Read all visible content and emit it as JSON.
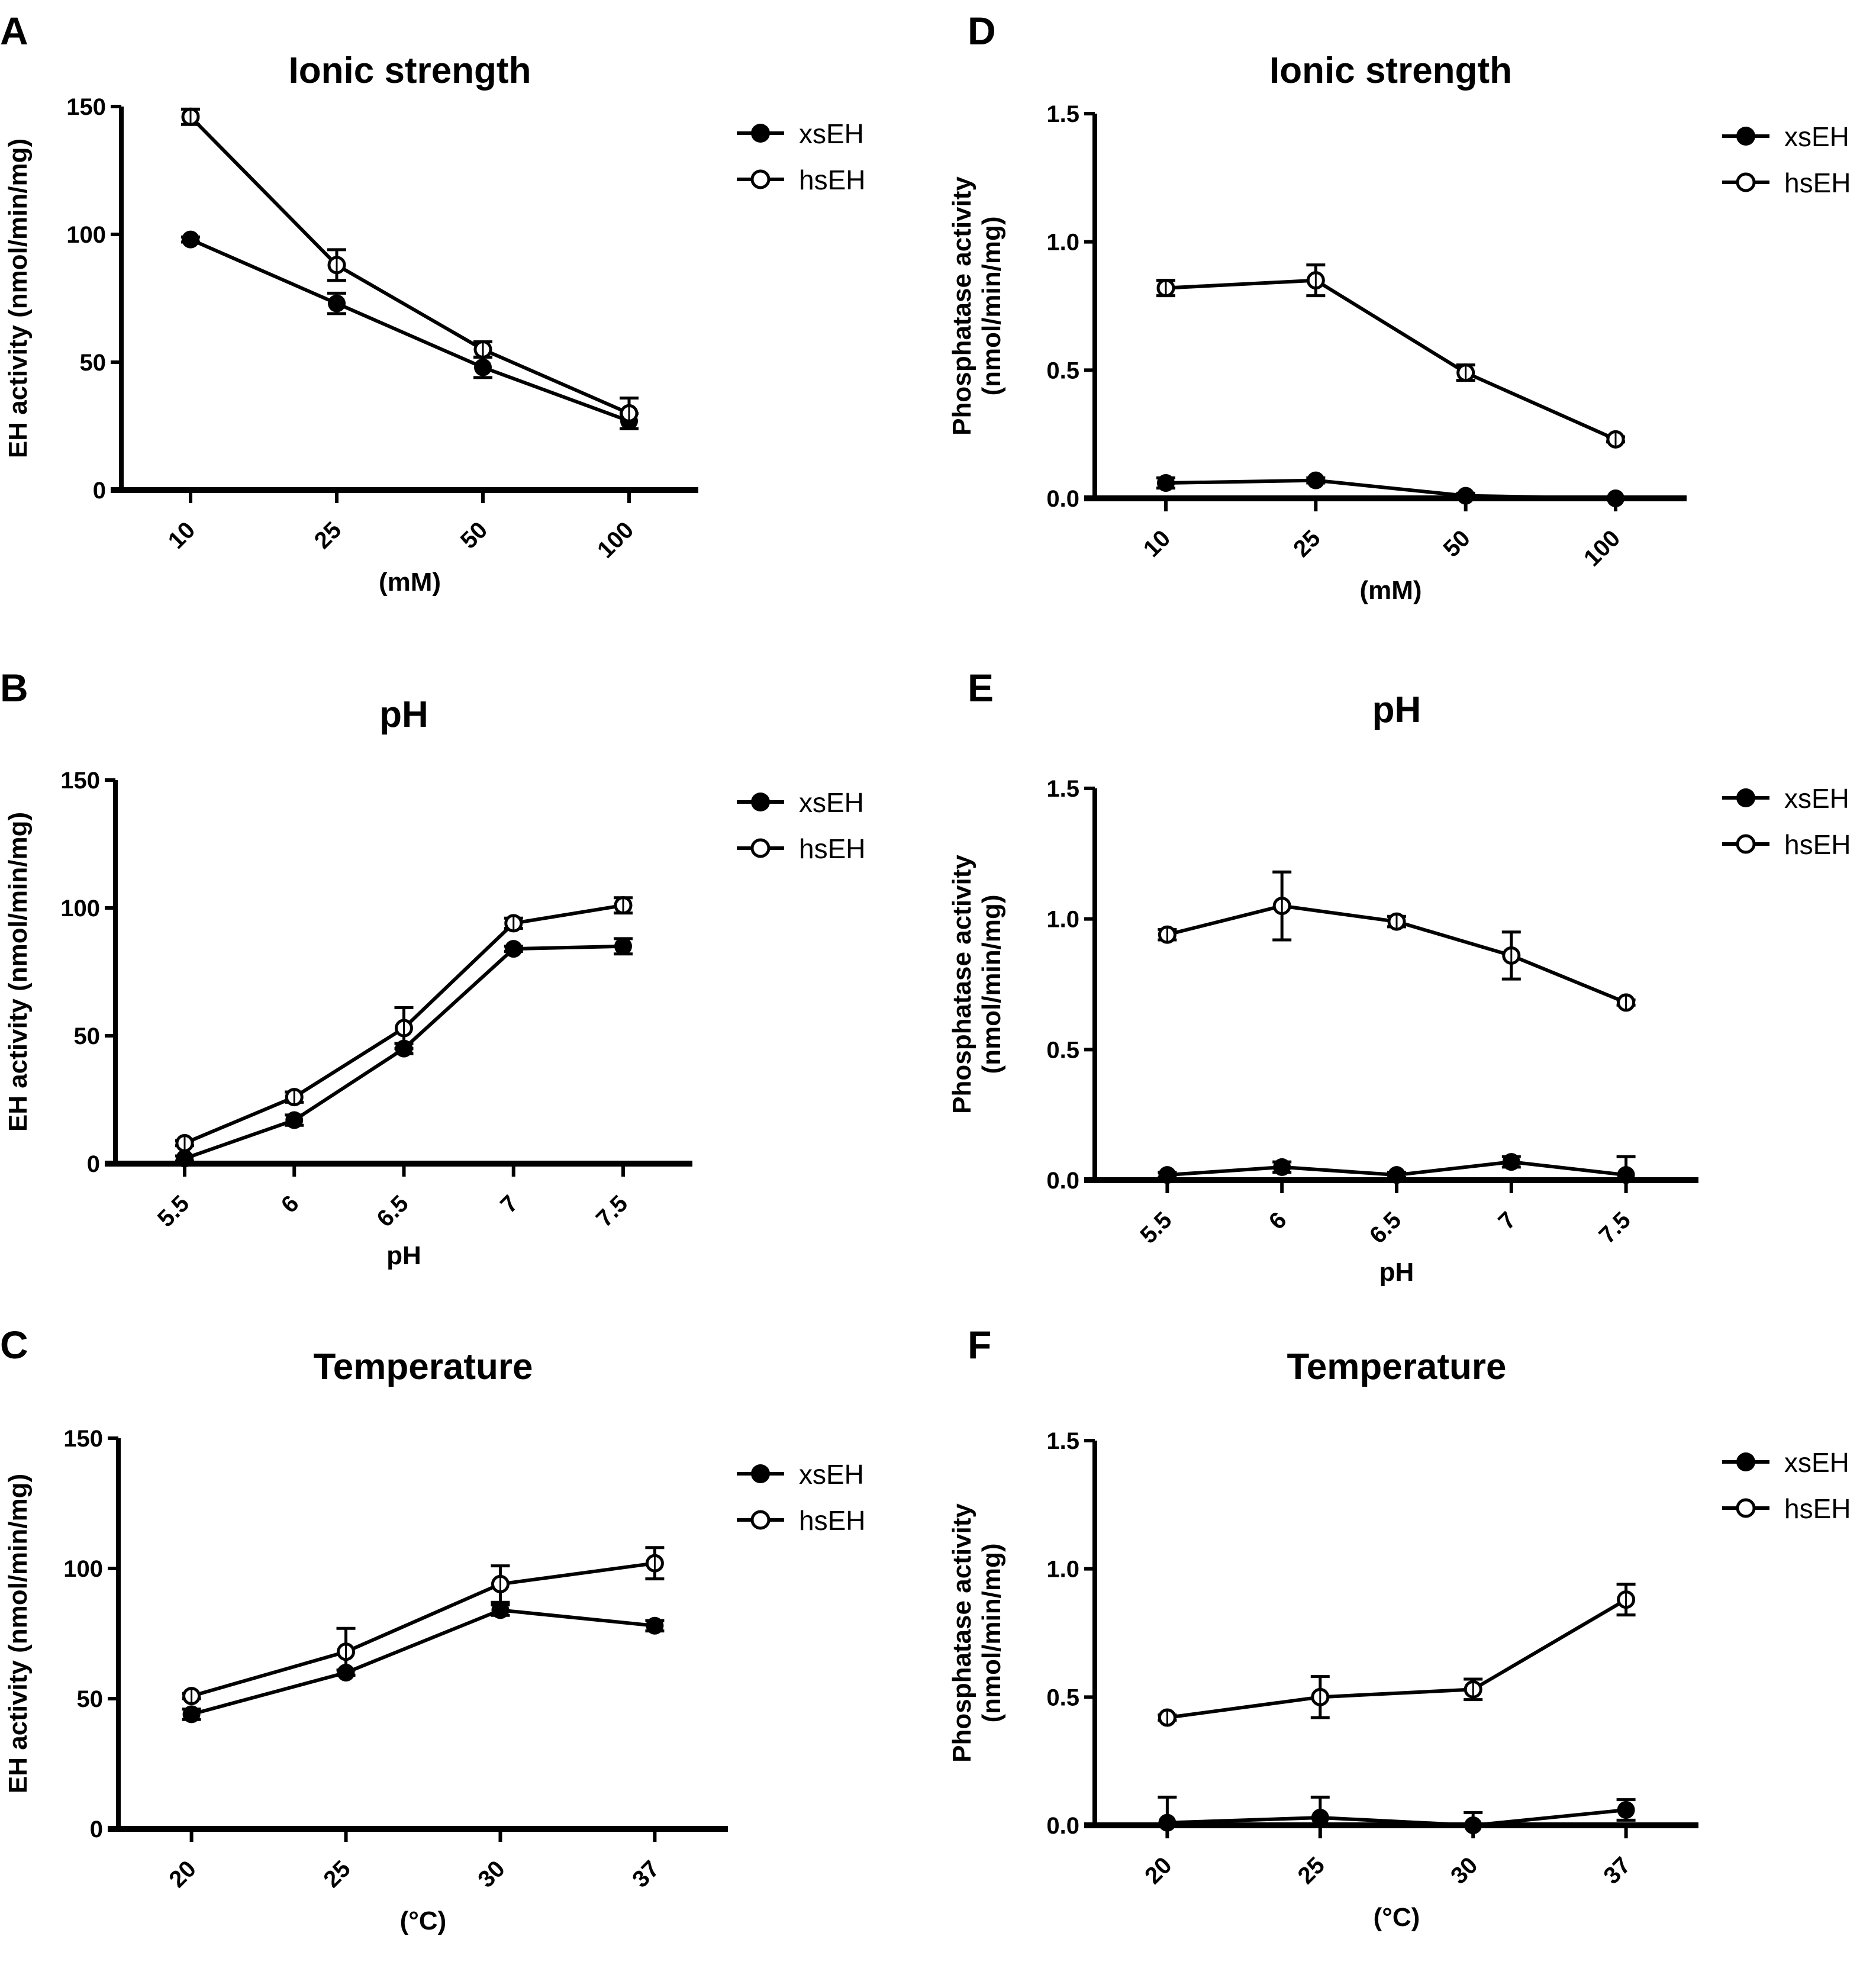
{
  "figure": {
    "panels": [
      "A",
      "B",
      "C",
      "D",
      "E",
      "F"
    ]
  },
  "chart_data": [
    {
      "id": "A",
      "type": "line",
      "title": "Ionic strength",
      "xlabel": "(mM)",
      "ylabel": "EH activity (nmol/min/mg)",
      "categories": [
        "10",
        "25",
        "50",
        "100"
      ],
      "ylim": [
        0,
        150
      ],
      "yticks": [
        "0",
        "50",
        "100",
        "150"
      ],
      "ytick_values": [
        0,
        50,
        100,
        150
      ],
      "x_rotated": true,
      "legend": "top-right",
      "series": [
        {
          "name": "xsEH",
          "marker": "filled-circle",
          "values": [
            98,
            73,
            48,
            27
          ],
          "errors": [
            1,
            4,
            4,
            3
          ]
        },
        {
          "name": "hsEH",
          "marker": "open-circle",
          "values": [
            146,
            88,
            55,
            30
          ],
          "errors": [
            3,
            6,
            3,
            6
          ]
        }
      ]
    },
    {
      "id": "B",
      "type": "line",
      "title": "pH",
      "xlabel": "pH",
      "ylabel": "EH activity (nmol/min/mg)",
      "categories": [
        "5.5",
        "6",
        "6.5",
        "7",
        "7.5"
      ],
      "ylim": [
        0,
        150
      ],
      "yticks": [
        "0",
        "50",
        "100",
        "150"
      ],
      "ytick_values": [
        0,
        50,
        100,
        150
      ],
      "x_rotated": true,
      "legend": "top-right",
      "series": [
        {
          "name": "xsEH",
          "marker": "filled-circle",
          "values": [
            2,
            17,
            45,
            84,
            85
          ],
          "errors": [
            1,
            2,
            2,
            1,
            3
          ]
        },
        {
          "name": "hsEH",
          "marker": "open-circle",
          "values": [
            8,
            26,
            53,
            94,
            101
          ],
          "errors": [
            1,
            2,
            8,
            2,
            3
          ]
        }
      ]
    },
    {
      "id": "C",
      "type": "line",
      "title": "Temperature",
      "xlabel": "(°C)",
      "ylabel": "EH activity (nmol/min/mg)",
      "categories": [
        "20",
        "25",
        "30",
        "37"
      ],
      "ylim": [
        0,
        150
      ],
      "yticks": [
        "0",
        "50",
        "100",
        "150"
      ],
      "ytick_values": [
        0,
        50,
        100,
        150
      ],
      "x_rotated": true,
      "legend": "top-right",
      "series": [
        {
          "name": "xsEH",
          "marker": "filled-circle",
          "values": [
            44,
            60,
            84,
            78
          ],
          "errors": [
            2,
            1,
            2,
            2
          ]
        },
        {
          "name": "hsEH",
          "marker": "open-circle",
          "values": [
            51,
            68,
            94,
            102
          ],
          "errors": [
            1,
            9,
            7,
            6
          ]
        }
      ]
    },
    {
      "id": "D",
      "type": "line",
      "title": "Ionic strength",
      "xlabel": "(mM)",
      "ylabel": "Phosphatase activity (nmol/min/mg)",
      "ylabel_lines": [
        "Phosphatase activity",
        "(nmol/min/mg)"
      ],
      "categories": [
        "10",
        "25",
        "50",
        "100"
      ],
      "ylim": [
        0,
        1.5
      ],
      "yticks": [
        "0.0",
        "0.5",
        "1.0",
        "1.5"
      ],
      "ytick_values": [
        0,
        0.5,
        1.0,
        1.5
      ],
      "x_rotated": true,
      "legend": "top-right",
      "series": [
        {
          "name": "xsEH",
          "marker": "filled-circle",
          "values": [
            0.06,
            0.07,
            0.01,
            0.0
          ],
          "errors": [
            0.02,
            0.01,
            0.01,
            0.0
          ]
        },
        {
          "name": "hsEH",
          "marker": "open-circle",
          "values": [
            0.82,
            0.85,
            0.49,
            0.23
          ],
          "errors": [
            0.03,
            0.06,
            0.03,
            0.01
          ]
        }
      ]
    },
    {
      "id": "E",
      "type": "line",
      "title": "pH",
      "xlabel": "pH",
      "ylabel": "Phosphatase activity (nmol/min/mg)",
      "ylabel_lines": [
        "Phosphatase activity",
        "(nmol/min/mg)"
      ],
      "categories": [
        "5.5",
        "6",
        "6.5",
        "7",
        "7.5"
      ],
      "ylim": [
        0,
        1.5
      ],
      "yticks": [
        "0.0",
        "0.5",
        "1.0",
        "1.5"
      ],
      "ytick_values": [
        0,
        0.5,
        1.0,
        1.5
      ],
      "x_rotated": true,
      "legend": "top-right",
      "series": [
        {
          "name": "xsEH",
          "marker": "filled-circle",
          "values": [
            0.02,
            0.05,
            0.02,
            0.07,
            0.02
          ],
          "errors": [
            0.01,
            0.02,
            0.01,
            0.02,
            0.07
          ]
        },
        {
          "name": "hsEH",
          "marker": "open-circle",
          "values": [
            0.94,
            1.05,
            0.99,
            0.86,
            0.68
          ],
          "errors": [
            0.02,
            0.13,
            0.02,
            0.09,
            0.01
          ]
        }
      ]
    },
    {
      "id": "F",
      "type": "line",
      "title": "Temperature",
      "xlabel": "(°C)",
      "ylabel": "Phosphatase activity (nmol/min/mg)",
      "ylabel_lines": [
        "Phosphatase activity",
        "(nmol/min/mg)"
      ],
      "categories": [
        "20",
        "25",
        "30",
        "37"
      ],
      "ylim": [
        0,
        1.5
      ],
      "yticks": [
        "0.0",
        "0.5",
        "1.0",
        "1.5"
      ],
      "ytick_values": [
        0,
        0.5,
        1.0,
        1.5
      ],
      "x_rotated": true,
      "legend": "top-right",
      "series": [
        {
          "name": "xsEH",
          "marker": "filled-circle",
          "values": [
            0.01,
            0.03,
            0.0,
            0.06
          ],
          "errors": [
            0.1,
            0.08,
            0.05,
            0.04
          ]
        },
        {
          "name": "hsEH",
          "marker": "open-circle",
          "values": [
            0.42,
            0.5,
            0.53,
            0.88
          ],
          "errors": [
            0.01,
            0.08,
            0.04,
            0.06
          ]
        }
      ]
    }
  ]
}
